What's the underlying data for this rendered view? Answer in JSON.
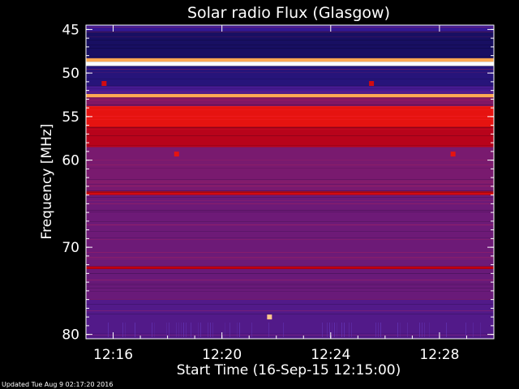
{
  "chart_data": {
    "type": "heatmap",
    "title": "Solar radio Flux (Glasgow)",
    "xlabel": "Start Time (16-Sep-15 12:15:00)",
    "ylabel": "Frequency [MHz]",
    "xlim": [
      "12:15:00",
      "12:30:00"
    ],
    "ylim": [
      44.5,
      80.5
    ],
    "y_direction": "down",
    "x_ticks": [
      "12:16",
      "12:20",
      "12:24",
      "12:28"
    ],
    "y_ticks": [
      45,
      50,
      55,
      60,
      70,
      80
    ],
    "grid": false,
    "colormap": [
      "#0a0a4a",
      "#3a1a9a",
      "#7a1a6e",
      "#c00010",
      "#ff2010",
      "#ffa040",
      "#ffffff"
    ],
    "bands": [
      {
        "from": 44.5,
        "to": 45.2,
        "level": 0.15
      },
      {
        "from": 45.2,
        "to": 48.3,
        "level": 0.05
      },
      {
        "from": 48.3,
        "to": 48.7,
        "level": 0.85
      },
      {
        "from": 48.7,
        "to": 49.2,
        "level": 1.0
      },
      {
        "from": 49.2,
        "to": 51.5,
        "level": 0.1
      },
      {
        "from": 51.5,
        "to": 52.4,
        "level": 0.2
      },
      {
        "from": 52.4,
        "to": 52.8,
        "level": 0.85
      },
      {
        "from": 52.8,
        "to": 53.8,
        "level": 0.35
      },
      {
        "from": 53.8,
        "to": 56.2,
        "level": 0.6
      },
      {
        "from": 56.2,
        "to": 58.5,
        "level": 0.48
      },
      {
        "from": 58.5,
        "to": 63.6,
        "level": 0.33
      },
      {
        "from": 63.6,
        "to": 64.0,
        "level": 0.55
      },
      {
        "from": 64.0,
        "to": 72.2,
        "level": 0.3
      },
      {
        "from": 72.2,
        "to": 72.5,
        "level": 0.5
      },
      {
        "from": 72.5,
        "to": 76.0,
        "level": 0.29
      },
      {
        "from": 76.0,
        "to": 80.5,
        "level": 0.23
      }
    ],
    "bursts": [
      {
        "time": "12:18:20",
        "freq": 59.3,
        "level": 0.6
      },
      {
        "time": "12:28:30",
        "freq": 59.3,
        "level": 0.6
      },
      {
        "time": "12:21:45",
        "freq": 78.0,
        "level": 0.9
      },
      {
        "time": "12:15:40",
        "freq": 51.2,
        "level": 0.55
      },
      {
        "time": "12:25:30",
        "freq": 51.2,
        "level": 0.55
      }
    ]
  },
  "footer": "Updated Tue Aug  9 02:17:20 2016"
}
